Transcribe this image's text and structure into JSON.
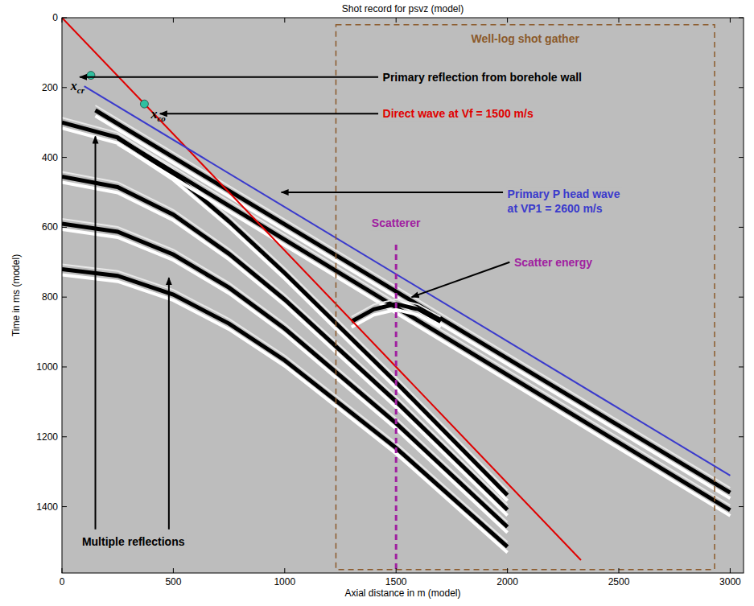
{
  "chart_data": {
    "type": "line",
    "title": "Shot record for psvz (model)",
    "x_label": "Axial distance in m (model)",
    "y_label": "Time in ms (model)",
    "xlim": [
      0,
      3060
    ],
    "ylim": [
      0,
      1590
    ],
    "xticks": [
      0,
      500,
      1000,
      1500,
      2000,
      2500,
      3000
    ],
    "yticks": [
      0,
      200,
      400,
      600,
      800,
      1000,
      1200,
      1400
    ],
    "grid": false,
    "series": [
      {
        "color": "#000000",
        "line_style": "solid",
        "x": [
          0,
          250,
          500,
          750,
          1000,
          1500,
          2000
        ],
        "values": [
          300,
          343,
          448,
          583,
          731,
          1044,
          1367
        ]
      },
      {
        "color": "#000000",
        "line_style": "solid",
        "x": [
          0,
          250,
          500,
          750,
          1000,
          1500,
          2000
        ],
        "values": [
          455,
          485,
          564,
          676,
          807,
          1099,
          1409
        ]
      },
      {
        "color": "#000000",
        "line_style": "solid",
        "x": [
          0,
          250,
          500,
          750,
          1000,
          1500,
          2000
        ],
        "values": [
          590,
          613,
          678,
          773,
          890,
          1161,
          1458
        ]
      },
      {
        "color": "#000000",
        "line_style": "solid",
        "x": [
          0,
          250,
          500,
          750,
          1000,
          1500,
          2000
        ],
        "values": [
          720,
          739,
          793,
          876,
          981,
          1232,
          1515
        ]
      },
      {
        "color": "#000000",
        "line_style": "solid",
        "x": [
          150,
          3000
        ],
        "values": [
          265,
          1360
        ]
      },
      {
        "color": "#000000",
        "line_style": "solid",
        "x": [
          250,
          3000
        ],
        "values": [
          345,
          1410
        ]
      },
      {
        "color": "#000000",
        "line_style": "solid",
        "x": [
          1300,
          1400,
          1500,
          1600,
          1700
        ],
        "values": [
          870,
          835,
          820,
          835,
          870
        ]
      },
      {
        "color": "#e00000",
        "line_style": "solid",
        "x": [
          0,
          2330
        ],
        "values": [
          0,
          1553
        ]
      },
      {
        "color": "#3a3acc",
        "line_style": "solid",
        "x": [
          100,
          3000
        ],
        "values": [
          196,
          1311
        ]
      }
    ],
    "points": [
      {
        "label": "xcr",
        "x": 130,
        "y": 165,
        "color": "#30c0a0"
      },
      {
        "label": "xco",
        "x": 370,
        "y": 247,
        "color": "#30c0a0"
      }
    ],
    "regions": [
      {
        "label": "Well-log shot gather",
        "x": [
          1230,
          2930
        ],
        "y": [
          20,
          1580
        ],
        "color": "#8b5a2b",
        "line_style": "dashed"
      }
    ],
    "vlines": [
      {
        "label": "Scatterer",
        "x": 1500,
        "y": [
          650,
          1590
        ],
        "color": "#a020a0",
        "line_style": "dashed"
      }
    ],
    "annotations": [
      {
        "text": "Primary reflection from borehole wall",
        "color": "#000000"
      },
      {
        "text": "Direct  wave at Vf = 1500 m/s",
        "color": "#e00000"
      },
      {
        "text": "Primary P head wave",
        "color": "#3a3acc"
      },
      {
        "text": "at VP1 = 2600 m/s",
        "color": "#3a3acc"
      },
      {
        "text": "Scatter energy",
        "color": "#a020a0"
      },
      {
        "text": "Multiple reflections",
        "color": "#000000"
      }
    ]
  }
}
